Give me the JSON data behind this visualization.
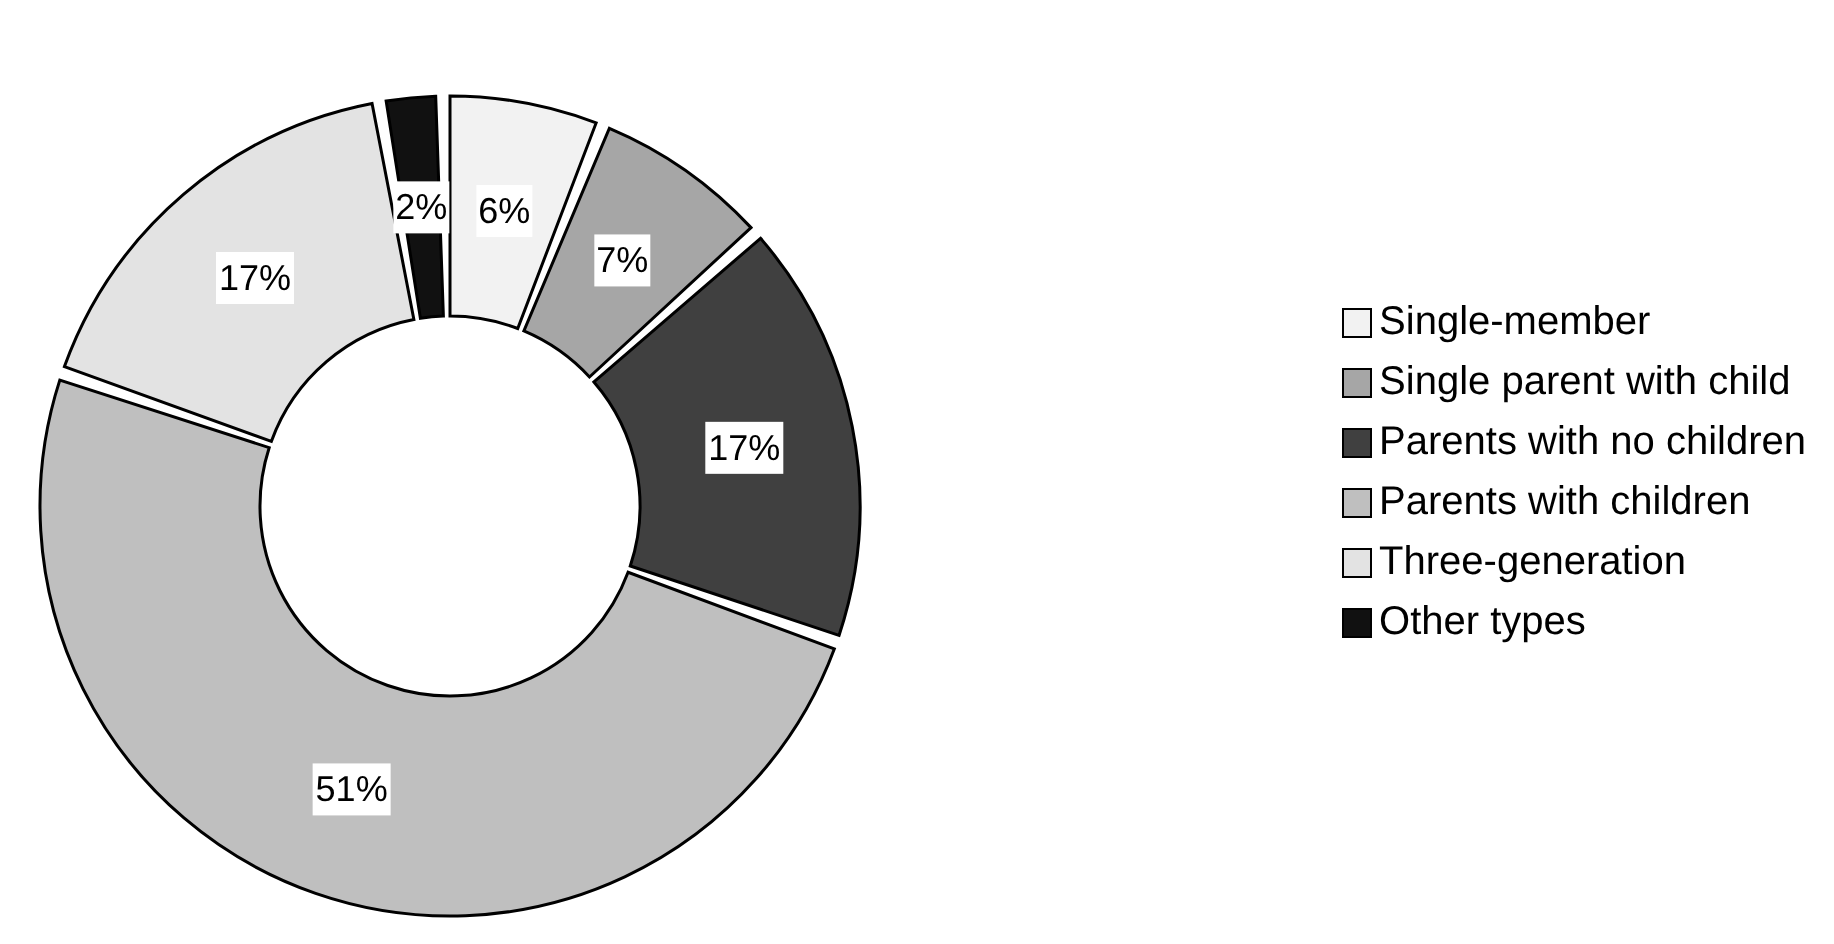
{
  "chart_data": {
    "type": "donut",
    "categories": [
      "Single-member",
      "Single parent with child",
      "Parents with no children",
      "Parents with children",
      "Three-generation",
      "Other types"
    ],
    "values": [
      6,
      7,
      17,
      51,
      17,
      2
    ],
    "colors": [
      "#f2f2f2",
      "#a6a6a6",
      "#404040",
      "#bfbfbf",
      "#e3e3e3",
      "#111111"
    ],
    "value_labels": [
      "6%",
      "7%",
      "17%",
      "51%",
      "17%",
      "2%"
    ],
    "legend": "right"
  }
}
